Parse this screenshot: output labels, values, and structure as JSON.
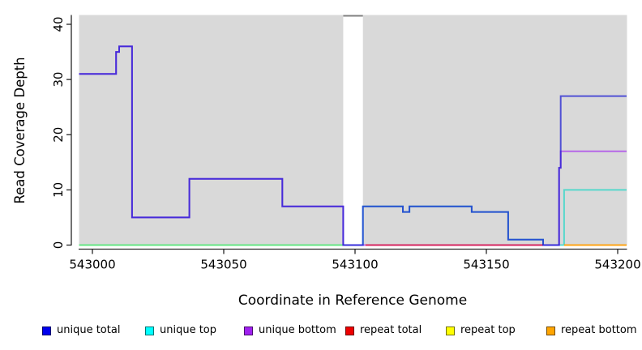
{
  "chart_data": {
    "type": "line",
    "style": "step-coverage",
    "title": "",
    "xlabel": "Coordinate in Reference Genome",
    "ylabel": "Read Coverage Depth",
    "xlim": [
      542994.9,
      543203.4
    ],
    "ylim": [
      0,
      41.7
    ],
    "x_ticks": [
      543000,
      543050,
      543100,
      543150,
      543200
    ],
    "y_ticks": [
      0,
      10,
      20,
      30,
      40
    ],
    "grid": false,
    "panel_background": "#d9d9d9",
    "gap_band": {
      "x_start": 543095.5,
      "x_end": 543103,
      "fill": "#ffffff",
      "top_edge_color": "#808080"
    },
    "series": [
      {
        "name": "repeat top",
        "legend_color": "#FFFF00",
        "line_color": "rgba(255,255,0,0.85)",
        "points": [
          [
            542994.9,
            0
          ],
          [
            543095.5,
            0
          ]
        ]
      },
      {
        "name": "unique top",
        "legend_color": "#00FFFF",
        "line_color": "rgba(0,215,195,0.6)",
        "points": [
          [
            542994.9,
            0
          ],
          [
            543103,
            0
          ],
          [
            543103,
            7
          ],
          [
            543118.2,
            7
          ],
          [
            543118.2,
            6
          ],
          [
            543120.7,
            6
          ],
          [
            543120.7,
            7
          ],
          [
            543144.4,
            7
          ],
          [
            543144.4,
            6
          ],
          [
            543158.3,
            6
          ],
          [
            543158.3,
            1
          ],
          [
            543171.6,
            1
          ],
          [
            543171.6,
            0
          ],
          [
            543179.6,
            0
          ],
          [
            543179.6,
            10
          ],
          [
            543203.4,
            10
          ]
        ]
      },
      {
        "name": "unique bottom",
        "legend_color": "#A020F0",
        "line_color": "rgba(160,32,240,0.62)",
        "points": [
          [
            542994.9,
            31
          ],
          [
            543009,
            31
          ],
          [
            543009,
            35
          ],
          [
            543010.2,
            35
          ],
          [
            543010.2,
            36
          ],
          [
            543015.1,
            36
          ],
          [
            543015.1,
            5
          ],
          [
            543036.9,
            5
          ],
          [
            543036.9,
            12
          ],
          [
            543072.3,
            12
          ],
          [
            543072.3,
            7
          ],
          [
            543095.5,
            7
          ],
          [
            543095.5,
            0
          ],
          [
            543177.7,
            0
          ],
          [
            543177.7,
            14
          ],
          [
            543178.3,
            14
          ],
          [
            543178.3,
            17
          ],
          [
            543203.4,
            17
          ]
        ]
      },
      {
        "name": "repeat total",
        "legend_color": "#EE0000",
        "line_color": "rgba(220,20,60,0.8)",
        "points": [
          [
            543104,
            0
          ],
          [
            543171.6,
            0
          ]
        ]
      },
      {
        "name": "unique total",
        "legend_color": "#0000EE",
        "line_color": "rgba(16,16,210,0.68)",
        "points": [
          [
            542994.9,
            31
          ],
          [
            543009,
            31
          ],
          [
            543009,
            35
          ],
          [
            543010.2,
            35
          ],
          [
            543010.2,
            36
          ],
          [
            543015.1,
            36
          ],
          [
            543015.1,
            5
          ],
          [
            543036.9,
            5
          ],
          [
            543036.9,
            12
          ],
          [
            543072.3,
            12
          ],
          [
            543072.3,
            7
          ],
          [
            543095.5,
            7
          ],
          [
            543095.5,
            0
          ],
          [
            543103,
            0
          ],
          [
            543103,
            7
          ],
          [
            543118.2,
            7
          ],
          [
            543118.2,
            6
          ],
          [
            543120.7,
            6
          ],
          [
            543120.7,
            7
          ],
          [
            543144.4,
            7
          ],
          [
            543144.4,
            6
          ],
          [
            543158.3,
            6
          ],
          [
            543158.3,
            1
          ],
          [
            543171.6,
            1
          ],
          [
            543171.6,
            0
          ],
          [
            543177.7,
            0
          ],
          [
            543177.7,
            14
          ],
          [
            543178.3,
            14
          ],
          [
            543178.3,
            27
          ],
          [
            543203.4,
            27
          ]
        ]
      },
      {
        "name": "repeat bottom",
        "legend_color": "#FFA500",
        "line_color": "rgba(255,160,10,0.95)",
        "points": [
          [
            543179.6,
            0
          ],
          [
            543203.4,
            0
          ]
        ]
      }
    ],
    "legend": [
      {
        "label": "unique total",
        "color": "#0000EE"
      },
      {
        "label": "unique top",
        "color": "#00FFFF"
      },
      {
        "label": "unique bottom",
        "color": "#A020F0"
      },
      {
        "label": "repeat total",
        "color": "#EE0000"
      },
      {
        "label": "repeat top",
        "color": "#FFFF00"
      },
      {
        "label": "repeat bottom",
        "color": "#FFA500"
      }
    ],
    "legend_position": "bottom"
  }
}
